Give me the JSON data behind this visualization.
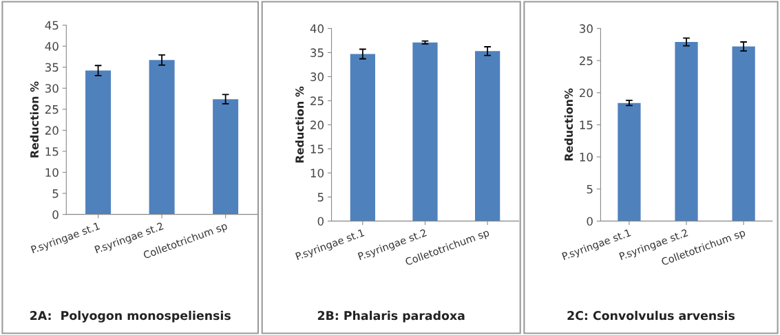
{
  "chart_data": [
    {
      "type": "bar",
      "title": "2A:  Polyogon monospeliensis",
      "ylabel": "Reduction %",
      "categories": [
        "P.syringae st.1",
        "P.syringae st.2",
        "Colletotrichum sp"
      ],
      "values": [
        34.2,
        36.7,
        27.4
      ],
      "errors": [
        1.2,
        1.2,
        1.1
      ],
      "color": "#4f81bd",
      "ylim": [
        0,
        45
      ],
      "yticks": [
        0,
        5,
        10,
        15,
        20,
        25,
        30,
        35,
        40,
        45
      ],
      "grid": false,
      "legend": false
    },
    {
      "type": "bar",
      "title": "2B: Phalaris paradoxa",
      "ylabel": "Reduction %",
      "categories": [
        "P.syringae st.1",
        "P.syringae st.2",
        "Colletotrichum sp"
      ],
      "values": [
        34.7,
        37.1,
        35.3
      ],
      "errors": [
        1.0,
        0.3,
        0.9
      ],
      "color": "#4f81bd",
      "ylim": [
        0,
        40
      ],
      "yticks": [
        0,
        5,
        10,
        15,
        20,
        25,
        30,
        35,
        40
      ],
      "grid": false,
      "legend": false
    },
    {
      "type": "bar",
      "title": "2C: Convolvulus arvensis",
      "ylabel": "Reduction%",
      "categories": [
        "P.syringae st.1",
        "P.syringae st.2",
        "Colletotrichum sp"
      ],
      "values": [
        18.4,
        27.9,
        27.2
      ],
      "errors": [
        0.4,
        0.6,
        0.7
      ],
      "color": "#4f81bd",
      "ylim": [
        0,
        30
      ],
      "yticks": [
        0,
        5,
        10,
        15,
        20,
        25,
        30
      ],
      "grid": false,
      "legend": false
    }
  ]
}
